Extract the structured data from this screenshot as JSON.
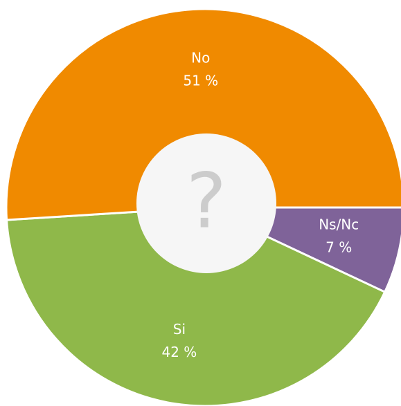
{
  "chart_data": {
    "type": "donut",
    "categories": [
      "Ns/Nc",
      "Si",
      "No"
    ],
    "values": [
      7,
      42,
      51
    ],
    "value_labels": [
      "7 %",
      "42 %",
      "51 %"
    ],
    "colors": [
      "#7f6399",
      "#8fb84a",
      "#f08a00"
    ],
    "center_text": "?"
  }
}
